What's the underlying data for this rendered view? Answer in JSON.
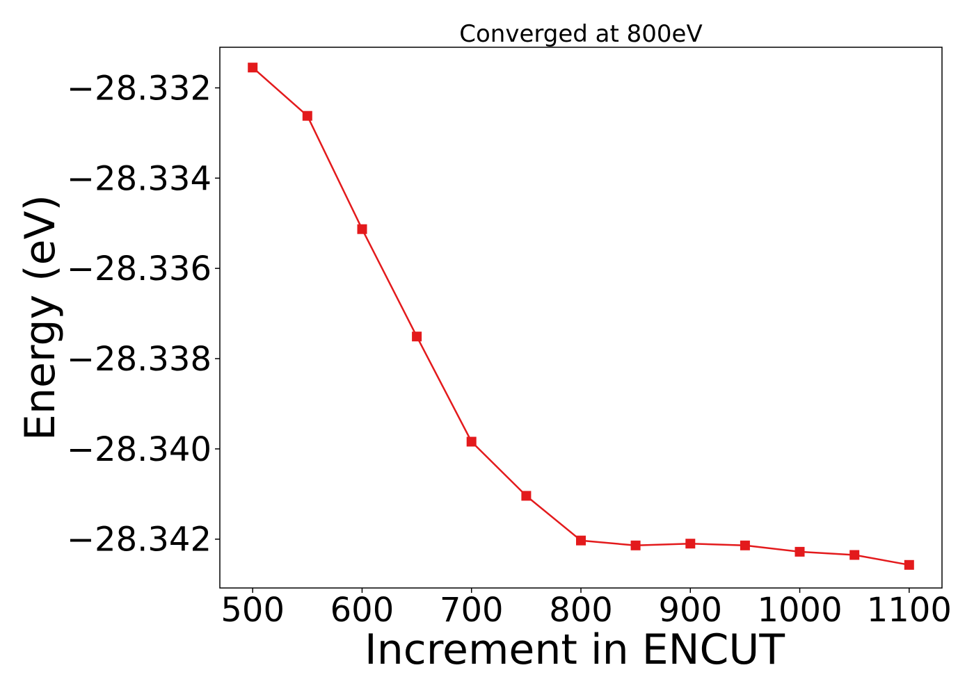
{
  "chart_data": {
    "type": "line",
    "title": "Converged at 800eV",
    "xlabel": "Increment in ENCUT",
    "ylabel": "Energy (eV)",
    "x": [
      500,
      550,
      600,
      650,
      700,
      750,
      800,
      850,
      900,
      950,
      1000,
      1050,
      1100
    ],
    "series": [
      {
        "values": [
          -28.33155,
          -28.33262,
          -28.33513,
          -28.33751,
          -28.33984,
          -28.34104,
          -28.34203,
          -28.34214,
          -28.3421,
          -28.34214,
          -28.34228,
          -28.34235,
          -28.34257
        ],
        "color": "#e31a1c",
        "marker": "square"
      }
    ],
    "xticks": [
      500,
      600,
      700,
      800,
      900,
      1000,
      1100
    ],
    "xtick_labels": [
      "500",
      "600",
      "700",
      "800",
      "900",
      "1000",
      "1100"
    ],
    "yticks": [
      -28.332,
      -28.334,
      -28.336,
      -28.338,
      -28.34,
      -28.342
    ],
    "ytick_labels": [
      "−28.332",
      "−28.334",
      "−28.336",
      "−28.338",
      "−28.340",
      "−28.342"
    ],
    "xlim": [
      470,
      1130
    ],
    "ylim": [
      -28.343082,
      -28.3311
    ],
    "grid": false,
    "legend": "none"
  }
}
